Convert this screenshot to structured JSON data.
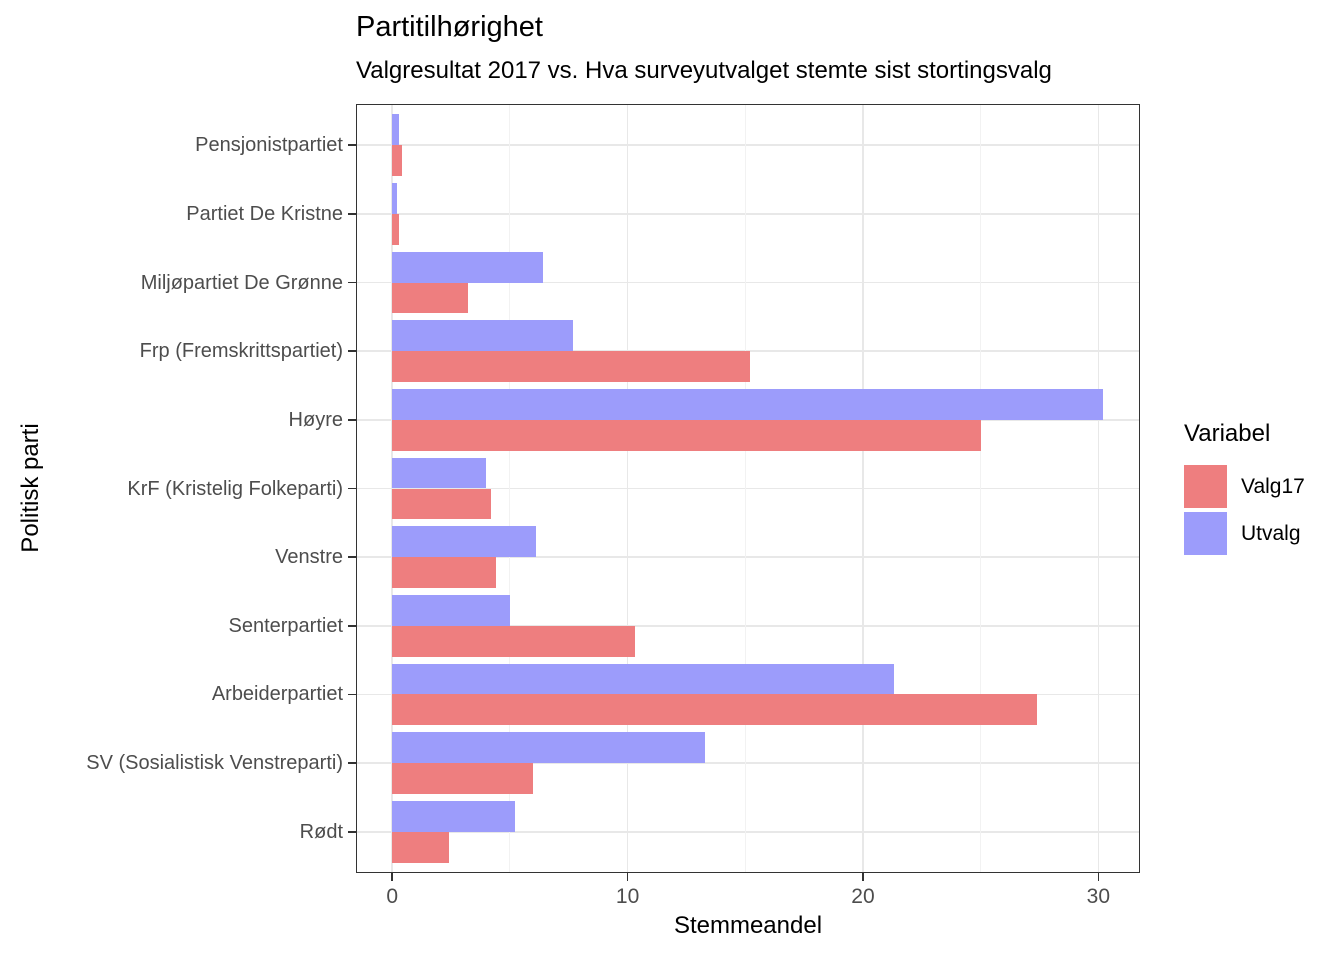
{
  "chart_data": {
    "type": "bar",
    "orientation": "horizontal",
    "title": "Partitilhørighet",
    "subtitle": "Valgresultat 2017 vs. Hva surveyutvalget stemte sist stortingsvalg",
    "xlabel": "Stemmeandel",
    "ylabel": "Politisk parti",
    "xlim": [
      -1.54,
      31.77
    ],
    "x_ticks": [
      0,
      10,
      20,
      30
    ],
    "x_minor_gridlines": [
      5,
      15,
      25
    ],
    "grid": true,
    "categories": [
      "Pensjonistpartiet",
      "Partiet De Kristne",
      "Miljøpartiet De Grønne",
      "Frp (Fremskrittspartiet)",
      "Høyre",
      "KrF (Kristelig Folkeparti)",
      "Venstre",
      "Senterpartiet",
      "Arbeiderpartiet",
      "SV (Sosialistisk Venstreparti)",
      "Rødt"
    ],
    "series": [
      {
        "name": "Valg17",
        "color": "#EE7E7F",
        "values": [
          0.4,
          0.3,
          3.2,
          15.2,
          25.0,
          4.2,
          4.4,
          10.3,
          27.4,
          6.0,
          2.4
        ]
      },
      {
        "name": "Utvalg",
        "color": "#9C9CFB",
        "values": [
          0.3,
          0.2,
          6.4,
          7.7,
          30.2,
          4.0,
          6.1,
          5.0,
          21.3,
          13.3,
          5.2
        ]
      }
    ],
    "bar_order_top_to_bottom": [
      "Utvalg",
      "Valg17"
    ],
    "legend": {
      "title": "Variabel",
      "position": "right"
    }
  },
  "colors": {
    "grid_major": "#E8E8E8",
    "grid_minor": "#F2F2F2",
    "panel_border": "#333333",
    "tick_mark": "#333333",
    "axis_text": "#4D4D4D",
    "text": "#000000"
  }
}
